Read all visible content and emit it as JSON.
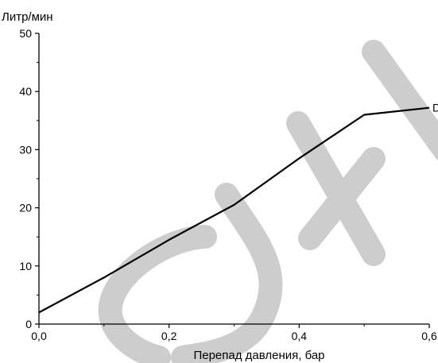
{
  "chart_data": {
    "type": "line",
    "title": "",
    "xlabel": "Перепад давления, бар",
    "ylabel": "Литр/мин",
    "xlim": [
      0,
      0.6
    ],
    "ylim": [
      0,
      50
    ],
    "x_ticks": [
      "0,0",
      "0,2",
      "0,4",
      "0,6"
    ],
    "x_tick_values": [
      0,
      0.2,
      0.4,
      0.6
    ],
    "y_ticks": [
      "0",
      "10",
      "20",
      "30",
      "40",
      "50"
    ],
    "y_tick_values": [
      0,
      10,
      20,
      30,
      40,
      50
    ],
    "grid": false,
    "series": [
      {
        "name": "D",
        "x": [
          0,
          0.1,
          0.2,
          0.3,
          0.4,
          0.5,
          0.6
        ],
        "y": [
          2,
          8,
          14.5,
          20.5,
          28.5,
          36,
          37.2
        ]
      }
    ],
    "colors": {
      "line": "#000000",
      "watermark": "#c8c8c8"
    }
  }
}
